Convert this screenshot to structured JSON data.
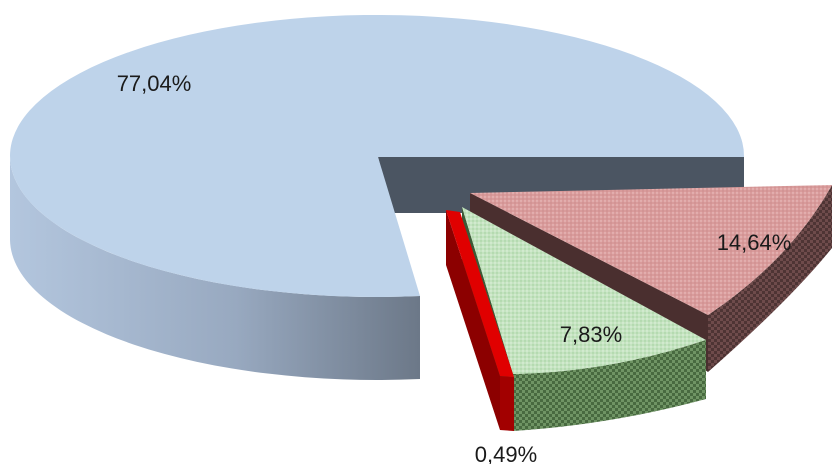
{
  "chart_data": {
    "type": "pie",
    "title": "",
    "slices": [
      {
        "label": "77,04%",
        "value": 77.04,
        "color": "#bed3ea"
      },
      {
        "label": "14,64%",
        "value": 14.64,
        "color": "#d99b9b"
      },
      {
        "label": "7,83%",
        "value": 7.83,
        "color": "#c4e3c0"
      },
      {
        "label": "0,49%",
        "value": 0.49,
        "color": "#e00000"
      }
    ],
    "style": "3d-exploded",
    "legend": "none"
  }
}
